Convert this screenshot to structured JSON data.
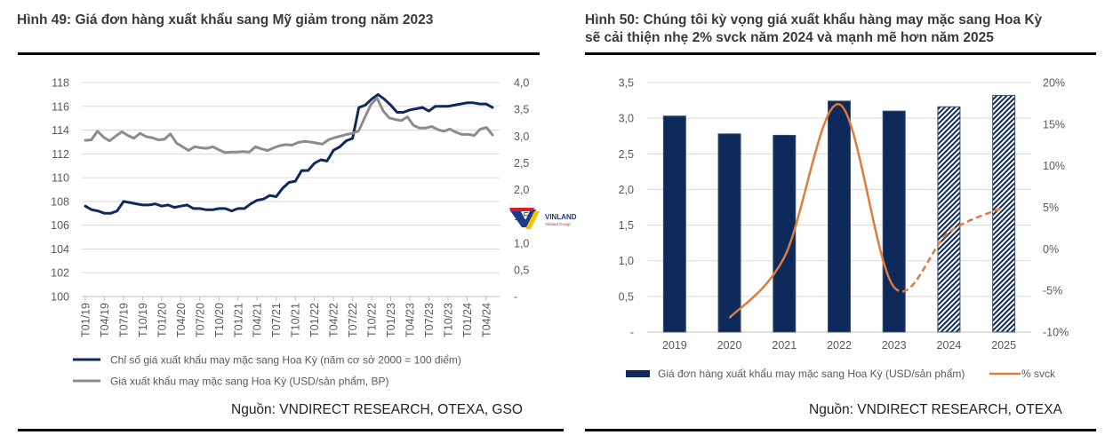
{
  "left": {
    "title": "Hình 49: Giá đơn hàng xuất khẩu sang Mỹ giảm trong năm 2023",
    "source": "Nguồn: VNDIRECT RESEARCH, OTEXA, GSO"
  },
  "right": {
    "title_line1": "Hình 50: Chúng tôi kỳ vọng giá xuất khẩu hàng may mặc sang Hoa Kỳ",
    "title_line2": "sẽ cải thiện nhẹ 2% svck năm 2024 và mạnh mẽ hơn năm 2025",
    "source": "Nguồn: VNDIRECT RESEARCH, OTEXA"
  },
  "watermark": {
    "text": "VINLAND",
    "subtext": "Vinland Group"
  },
  "colors": {
    "navy": "#0e2a5c",
    "gray": "#8c8c8c",
    "orange": "#e07b39",
    "grid": "#d9d9d9"
  },
  "chart_data": [
    {
      "type": "line",
      "title": "Hình 49: Giá đơn hàng xuất khẩu sang Mỹ giảm trong năm 2023",
      "y_left": {
        "ylim": [
          100,
          118
        ],
        "ticks": [
          "100",
          "102",
          "104",
          "106",
          "108",
          "110",
          "112",
          "114",
          "116",
          "118"
        ]
      },
      "y_right": {
        "ylim": [
          0,
          4.0
        ],
        "ticks": [
          "-",
          "0,5",
          "1,0",
          "1,5",
          "2,0",
          "2,5",
          "3,0",
          "3,5",
          "4,0"
        ]
      },
      "x_tick_labels": [
        "T01/19",
        "T04/19",
        "T07/19",
        "T10/19",
        "T01/20",
        "T04/20",
        "T07/20",
        "T10/20",
        "T01/21",
        "T04/21",
        "T07/21",
        "T10/21",
        "T01/22",
        "T04/22",
        "T07/22",
        "T10/22",
        "T01/23",
        "T04/23",
        "T07/23",
        "T10/23",
        "T01/24",
        "T04/24"
      ],
      "grid": true,
      "legend_position": "bottom",
      "series": [
        {
          "name": "Chỉ số giá xuất khẩu may mặc sang Hoa Kỳ (năm cơ sở 2000 = 100 điểm)",
          "axis": "left",
          "color": "#0e2a5c",
          "values": [
            107.6,
            107.3,
            107.2,
            107.0,
            107.0,
            107.2,
            108.0,
            107.9,
            107.8,
            107.7,
            107.7,
            107.8,
            107.6,
            107.7,
            107.5,
            107.6,
            107.7,
            107.4,
            107.4,
            107.3,
            107.3,
            107.4,
            107.4,
            107.2,
            107.4,
            107.4,
            107.8,
            108.1,
            108.2,
            108.5,
            108.4,
            109.1,
            109.6,
            109.7,
            110.6,
            110.6,
            111.2,
            111.5,
            111.4,
            112.3,
            112.6,
            113.1,
            113.3,
            115.9,
            116.1,
            116.6,
            117.0,
            116.6,
            116.1,
            115.5,
            115.5,
            115.7,
            115.8,
            115.9,
            115.6,
            116.0,
            116.0,
            116.0,
            116.1,
            116.2,
            116.3,
            116.3,
            116.2,
            116.2,
            115.9
          ]
        },
        {
          "name": "Giá xuất khẩu may mặc sang Hoa Kỳ (USD/sản phẩm, BP)",
          "axis": "right",
          "color": "#8c8c8c",
          "values": [
            2.92,
            2.93,
            3.09,
            2.98,
            2.91,
            3.0,
            3.08,
            3.01,
            2.96,
            3.05,
            2.99,
            2.97,
            2.93,
            2.94,
            3.04,
            2.87,
            2.8,
            2.73,
            2.8,
            2.78,
            2.77,
            2.8,
            2.74,
            2.69,
            2.7,
            2.7,
            2.71,
            2.7,
            2.8,
            2.76,
            2.73,
            2.78,
            2.82,
            2.84,
            2.83,
            2.88,
            2.9,
            2.89,
            2.87,
            2.85,
            2.93,
            2.97,
            3.0,
            3.03,
            3.05,
            3.1,
            3.35,
            3.59,
            3.71,
            3.47,
            3.34,
            3.31,
            3.29,
            3.36,
            3.2,
            3.15,
            3.15,
            3.18,
            3.12,
            3.09,
            3.13,
            3.07,
            3.03,
            3.03,
            3.01,
            3.13,
            3.16,
            3.02
          ]
        }
      ]
    },
    {
      "type": "bar",
      "title": "Hình 50: Chúng tôi kỳ vọng giá xuất khẩu hàng may mặc sang Hoa Kỳ sẽ cải thiện nhẹ 2% svck năm 2024 và mạnh mẽ hơn năm 2025",
      "categories": [
        "2019",
        "2020",
        "2021",
        "2022",
        "2023",
        "2024",
        "2025"
      ],
      "y_left": {
        "ylim": [
          0,
          3.5
        ],
        "ticks": [
          "-",
          "0,5",
          "1,0",
          "1,5",
          "2,0",
          "2,5",
          "3,0",
          "3,5"
        ]
      },
      "y_right": {
        "ylim": [
          -10,
          20
        ],
        "ticks": [
          "-10%",
          "-5%",
          "0%",
          "5%",
          "10%",
          "15%",
          "20%"
        ]
      },
      "grid": true,
      "legend_position": "bottom",
      "series": [
        {
          "name": "Giá đơn hàng xuất khẩu may mặc sang Hoa Kỳ (USD/sản phẩm)",
          "type": "bar",
          "axis": "left",
          "color": "#0e2a5c",
          "values": [
            3.03,
            2.78,
            2.76,
            3.24,
            3.1,
            3.16,
            3.32
          ],
          "forecast_from": "2024"
        },
        {
          "name": "% svck",
          "type": "line",
          "axis": "right",
          "color": "#e07b39",
          "values": [
            null,
            -8.3,
            -1.0,
            17.4,
            -4.6,
            2.0,
            5.0
          ],
          "forecast_from": "2023"
        }
      ]
    }
  ]
}
